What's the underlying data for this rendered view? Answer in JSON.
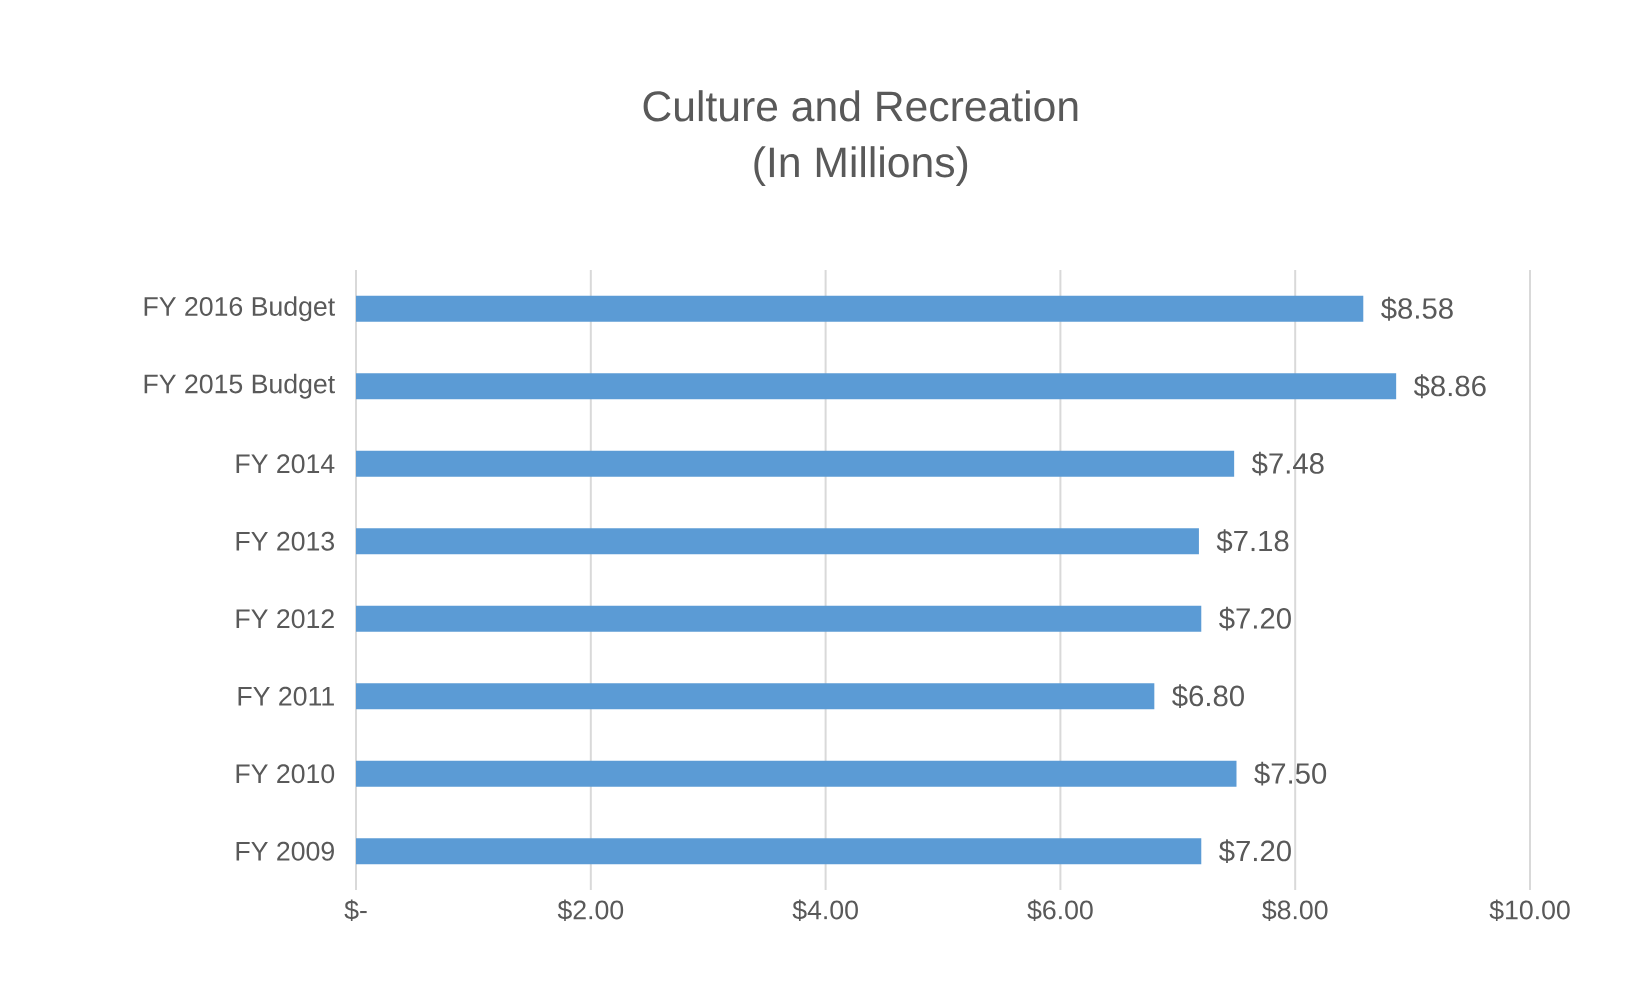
{
  "chart_data": {
    "type": "bar",
    "orientation": "horizontal",
    "title": "Culture and Recreation",
    "subtitle": "(In Millions)",
    "categories": [
      "FY 2016 Budget",
      "FY 2015 Budget",
      "FY 2014",
      "FY 2013",
      "FY 2012",
      "FY 2011",
      "FY 2010",
      "FY 2009"
    ],
    "values": [
      8.58,
      8.86,
      7.48,
      7.18,
      7.2,
      6.8,
      7.5,
      7.2
    ],
    "value_labels": [
      "$8.58",
      "$8.86",
      "$7.48",
      "$7.18",
      "$7.20",
      "$6.80",
      "$7.50",
      "$7.20"
    ],
    "color": "#5b9bd5",
    "xlim": [
      0,
      10
    ],
    "xticks": [
      {
        "value": 0,
        "label": "$-"
      },
      {
        "value": 2,
        "label": "$2.00"
      },
      {
        "value": 4,
        "label": "$4.00"
      },
      {
        "value": 6,
        "label": "$6.00"
      },
      {
        "value": 8,
        "label": "$8.00"
      },
      {
        "value": 10,
        "label": "$10.00"
      }
    ],
    "grid": "x"
  }
}
